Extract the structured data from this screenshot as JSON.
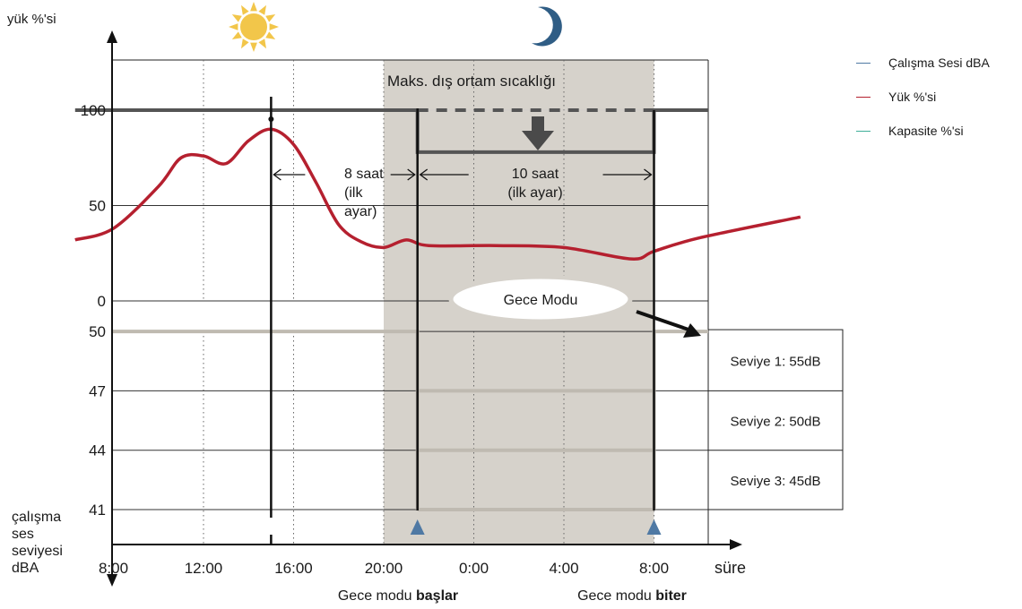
{
  "chart_data": {
    "type": "line",
    "y_top_label": "yük %'si",
    "y_bottom_label": [
      "çalışma",
      "ses",
      "seviyesi",
      "dBA"
    ],
    "x_label": "süre",
    "x_ticks": [
      "8:00",
      "12:00",
      "16:00",
      "20:00",
      "0:00",
      "4:00",
      "8:00"
    ],
    "y_load_ticks": [
      "100",
      "50",
      "0"
    ],
    "y_sound_ticks": [
      "50",
      "47",
      "44",
      "41"
    ],
    "load_ylim": [
      0,
      100
    ],
    "sound_ylim": [
      41,
      50
    ],
    "x_hours": [
      8,
      12,
      16,
      20,
      24,
      28,
      32
    ],
    "capacity_series": {
      "name": "Kapasite %'si",
      "points": [
        [
          6.3,
          100
        ],
        [
          21.5,
          100
        ],
        [
          21.5,
          78
        ],
        [
          32,
          78
        ],
        [
          32,
          100
        ],
        [
          38.5,
          100
        ]
      ],
      "dashed_segment": [
        [
          21.5,
          100
        ],
        [
          32,
          100
        ]
      ]
    },
    "load_series": {
      "name": "Yük %'si",
      "points": [
        [
          6.3,
          32
        ],
        [
          8,
          38
        ],
        [
          10,
          60
        ],
        [
          11,
          75
        ],
        [
          12,
          76
        ],
        [
          13,
          72
        ],
        [
          14,
          84
        ],
        [
          15,
          90
        ],
        [
          16,
          82
        ],
        [
          17,
          62
        ],
        [
          18,
          40
        ],
        [
          19,
          31
        ],
        [
          20,
          28
        ],
        [
          21,
          32
        ],
        [
          22,
          29
        ],
        [
          25,
          29
        ],
        [
          28,
          28
        ],
        [
          31,
          22
        ],
        [
          32,
          26
        ],
        [
          34,
          33
        ],
        [
          38.5,
          44
        ]
      ]
    },
    "sound_series": {
      "name": "Çalışma Sesi dBA",
      "levels": [
        {
          "label": "Seviye 1: 55dB",
          "db": 50
        },
        {
          "label": "Seviye 2: 50dB",
          "db": 47
        },
        {
          "label": "Seviye 3: 45dB",
          "db": 44
        }
      ],
      "steps": [
        [
          6.3,
          50
        ],
        [
          21.5,
          50
        ],
        [
          21.5,
          41
        ],
        [
          32,
          41
        ],
        [
          32,
          50
        ],
        [
          38.5,
          50
        ]
      ]
    },
    "night_range": [
      20,
      32
    ],
    "peak_hour": 15,
    "annotations": {
      "max_temp": "Maks. dış ortam sıcaklığı",
      "eight_hours": [
        "8 saat",
        "(ilk",
        "ayar)"
      ],
      "ten_hours": [
        "10 saat",
        "(ilk ayar)"
      ],
      "night_mode": "Gece Modu",
      "start_label": "Gece modu ",
      "start_bold": "başlar",
      "end_label": "Gece modu ",
      "end_bold": "biter"
    },
    "icons": [
      "sun-icon",
      "moon-icon"
    ],
    "colors": {
      "capacity": "#555555",
      "load": "#b5202f",
      "sound": "#bfbab1",
      "night_band": "#d6d2cb",
      "marker": "#4f79a4",
      "legend_sound": "#4f79a4",
      "legend_load": "#b5202f",
      "legend_capacity": "#3fae98",
      "sun": "#f2c64a"
    }
  },
  "legend": [
    {
      "label": "Çalışma Sesi dBA",
      "color": "#4f79a4"
    },
    {
      "label": "Yük %'si",
      "color": "#b5202f"
    },
    {
      "label": "Kapasite %'si",
      "color": "#3fae98"
    }
  ]
}
